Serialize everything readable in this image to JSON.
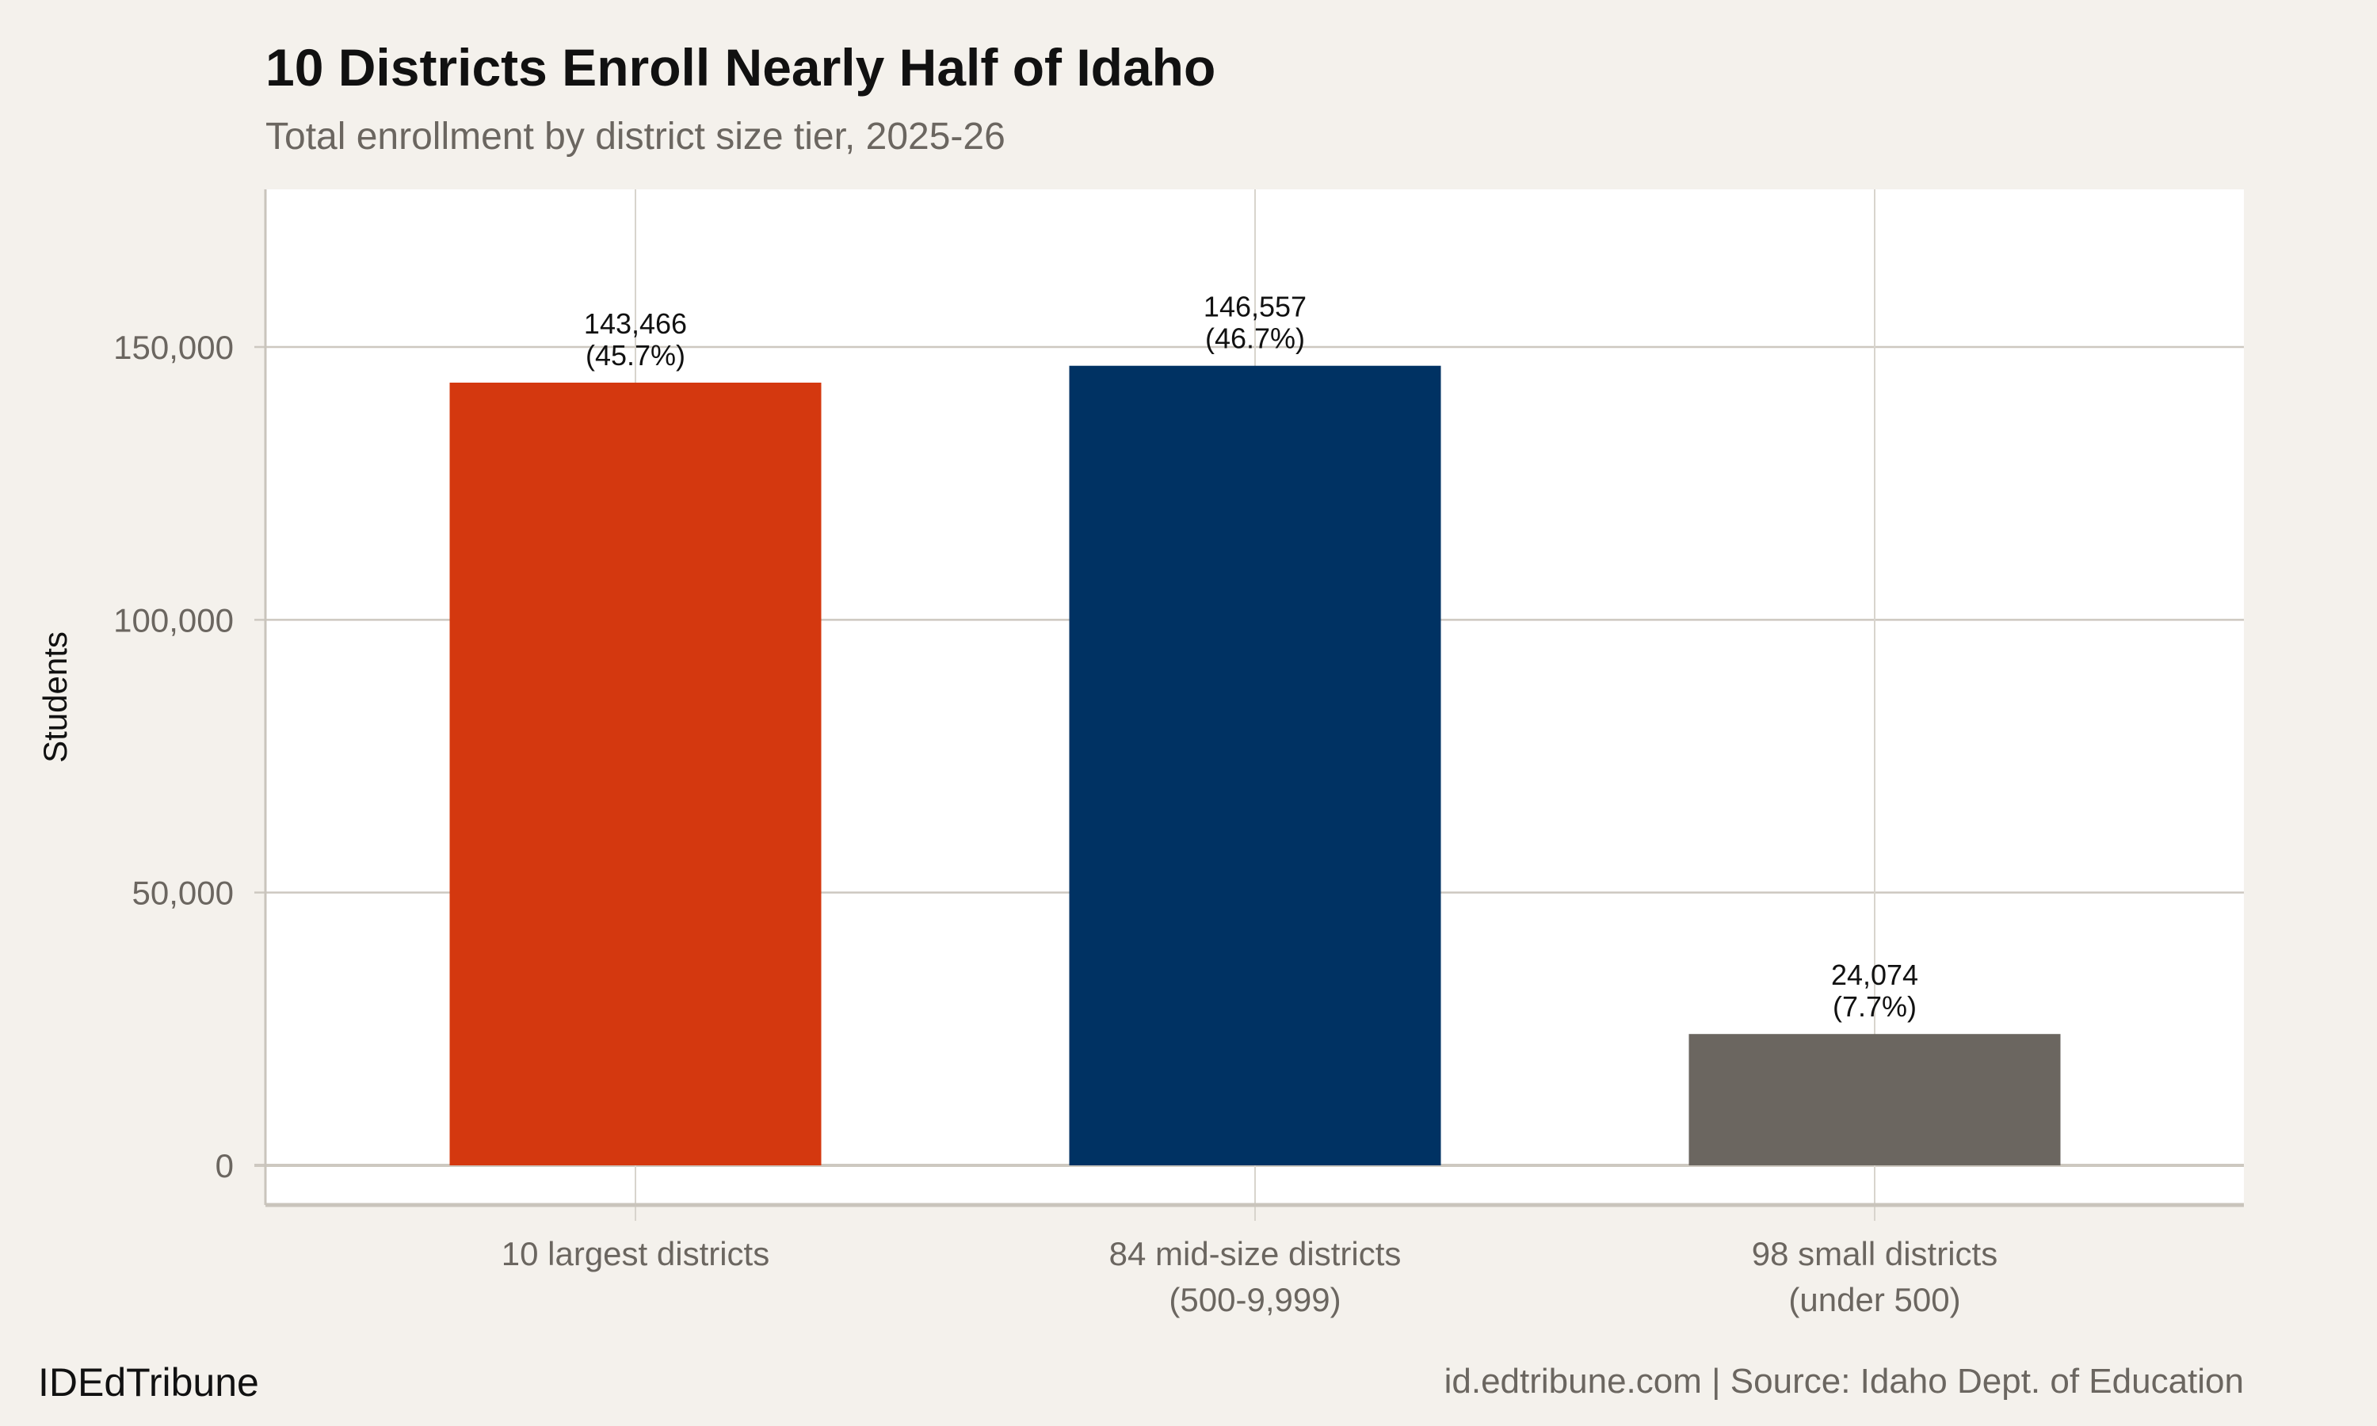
{
  "chart_data": {
    "type": "bar",
    "title": "10 Districts Enroll Nearly Half of Idaho",
    "subtitle": "Total enrollment by district size tier, 2025-26",
    "xlabel": "",
    "ylabel": "Students",
    "ylim": [
      -7200,
      179000
    ],
    "yticks": [
      0,
      50000,
      100000,
      150000
    ],
    "ytick_labels": [
      "0",
      "50,000",
      "100,000",
      "150,000"
    ],
    "grid": true,
    "categories": [
      [
        "10 largest districts"
      ],
      [
        "84 mid-size districts",
        "(500-9,999)"
      ],
      [
        "98 small districts",
        "(under 500)"
      ]
    ],
    "values": [
      143466,
      146557,
      24074
    ],
    "data_labels": [
      [
        "143,466",
        "(45.7%)"
      ],
      [
        "146,557",
        "(46.7%)"
      ],
      [
        "24,074",
        "(7.7%)"
      ]
    ],
    "colors": [
      "#d4380f",
      "#003263",
      "#6b6660"
    ]
  },
  "footer": {
    "brand": "IDEdTribune",
    "source": "id.edtribune.com | Source: Idaho Dept. of Education"
  }
}
